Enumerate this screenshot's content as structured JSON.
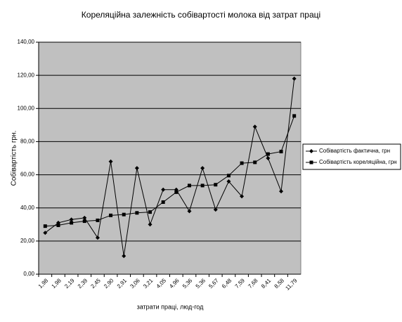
{
  "chart_data": {
    "type": "line",
    "title": "Кореляційна залежність собівартості молока від затрат праці",
    "x_label": "затрати праці, люд-год",
    "y_label": "Собівартість  грн.",
    "categories": [
      "1,98",
      "1,98",
      "2,19",
      "2,39",
      "2,45",
      "2,90",
      "2,91",
      "3,06",
      "3,21",
      "4,05",
      "4,96",
      "5,36",
      "5,36",
      "5,67",
      "6,48",
      "7,59",
      "7,68",
      "8,41",
      "8,58",
      "11,79"
    ],
    "series": [
      {
        "name": "Собівартість фактична, грн",
        "color": "#000000",
        "marker": "diamond",
        "values": [
          25,
          31,
          33,
          34,
          22,
          68,
          11,
          64,
          30,
          51,
          51,
          38,
          64,
          39,
          56,
          47,
          89,
          70,
          50,
          118
        ]
      },
      {
        "name": "Собівартість кореляційна, грн",
        "color": "#000000",
        "marker": "square",
        "values": [
          29,
          29.5,
          31,
          32,
          32.5,
          35.5,
          36,
          37,
          37.5,
          43.5,
          49.5,
          53.5,
          53.5,
          54,
          59.5,
          67,
          67.5,
          72.5,
          74,
          95.5
        ]
      }
    ],
    "ylim": [
      0,
      140
    ],
    "yticks": [
      {
        "value": 0,
        "label": "0,00"
      },
      {
        "value": 20,
        "label": "20,00"
      },
      {
        "value": 40,
        "label": "40,00"
      },
      {
        "value": 60,
        "label": "60,00"
      },
      {
        "value": 80,
        "label": "80,00"
      },
      {
        "value": 100,
        "label": "100,00"
      },
      {
        "value": 120,
        "label": "120,00"
      },
      {
        "value": 140,
        "label": "140,00"
      }
    ],
    "grid": true,
    "plot_background": "#c0c0c0",
    "legend": "right"
  }
}
